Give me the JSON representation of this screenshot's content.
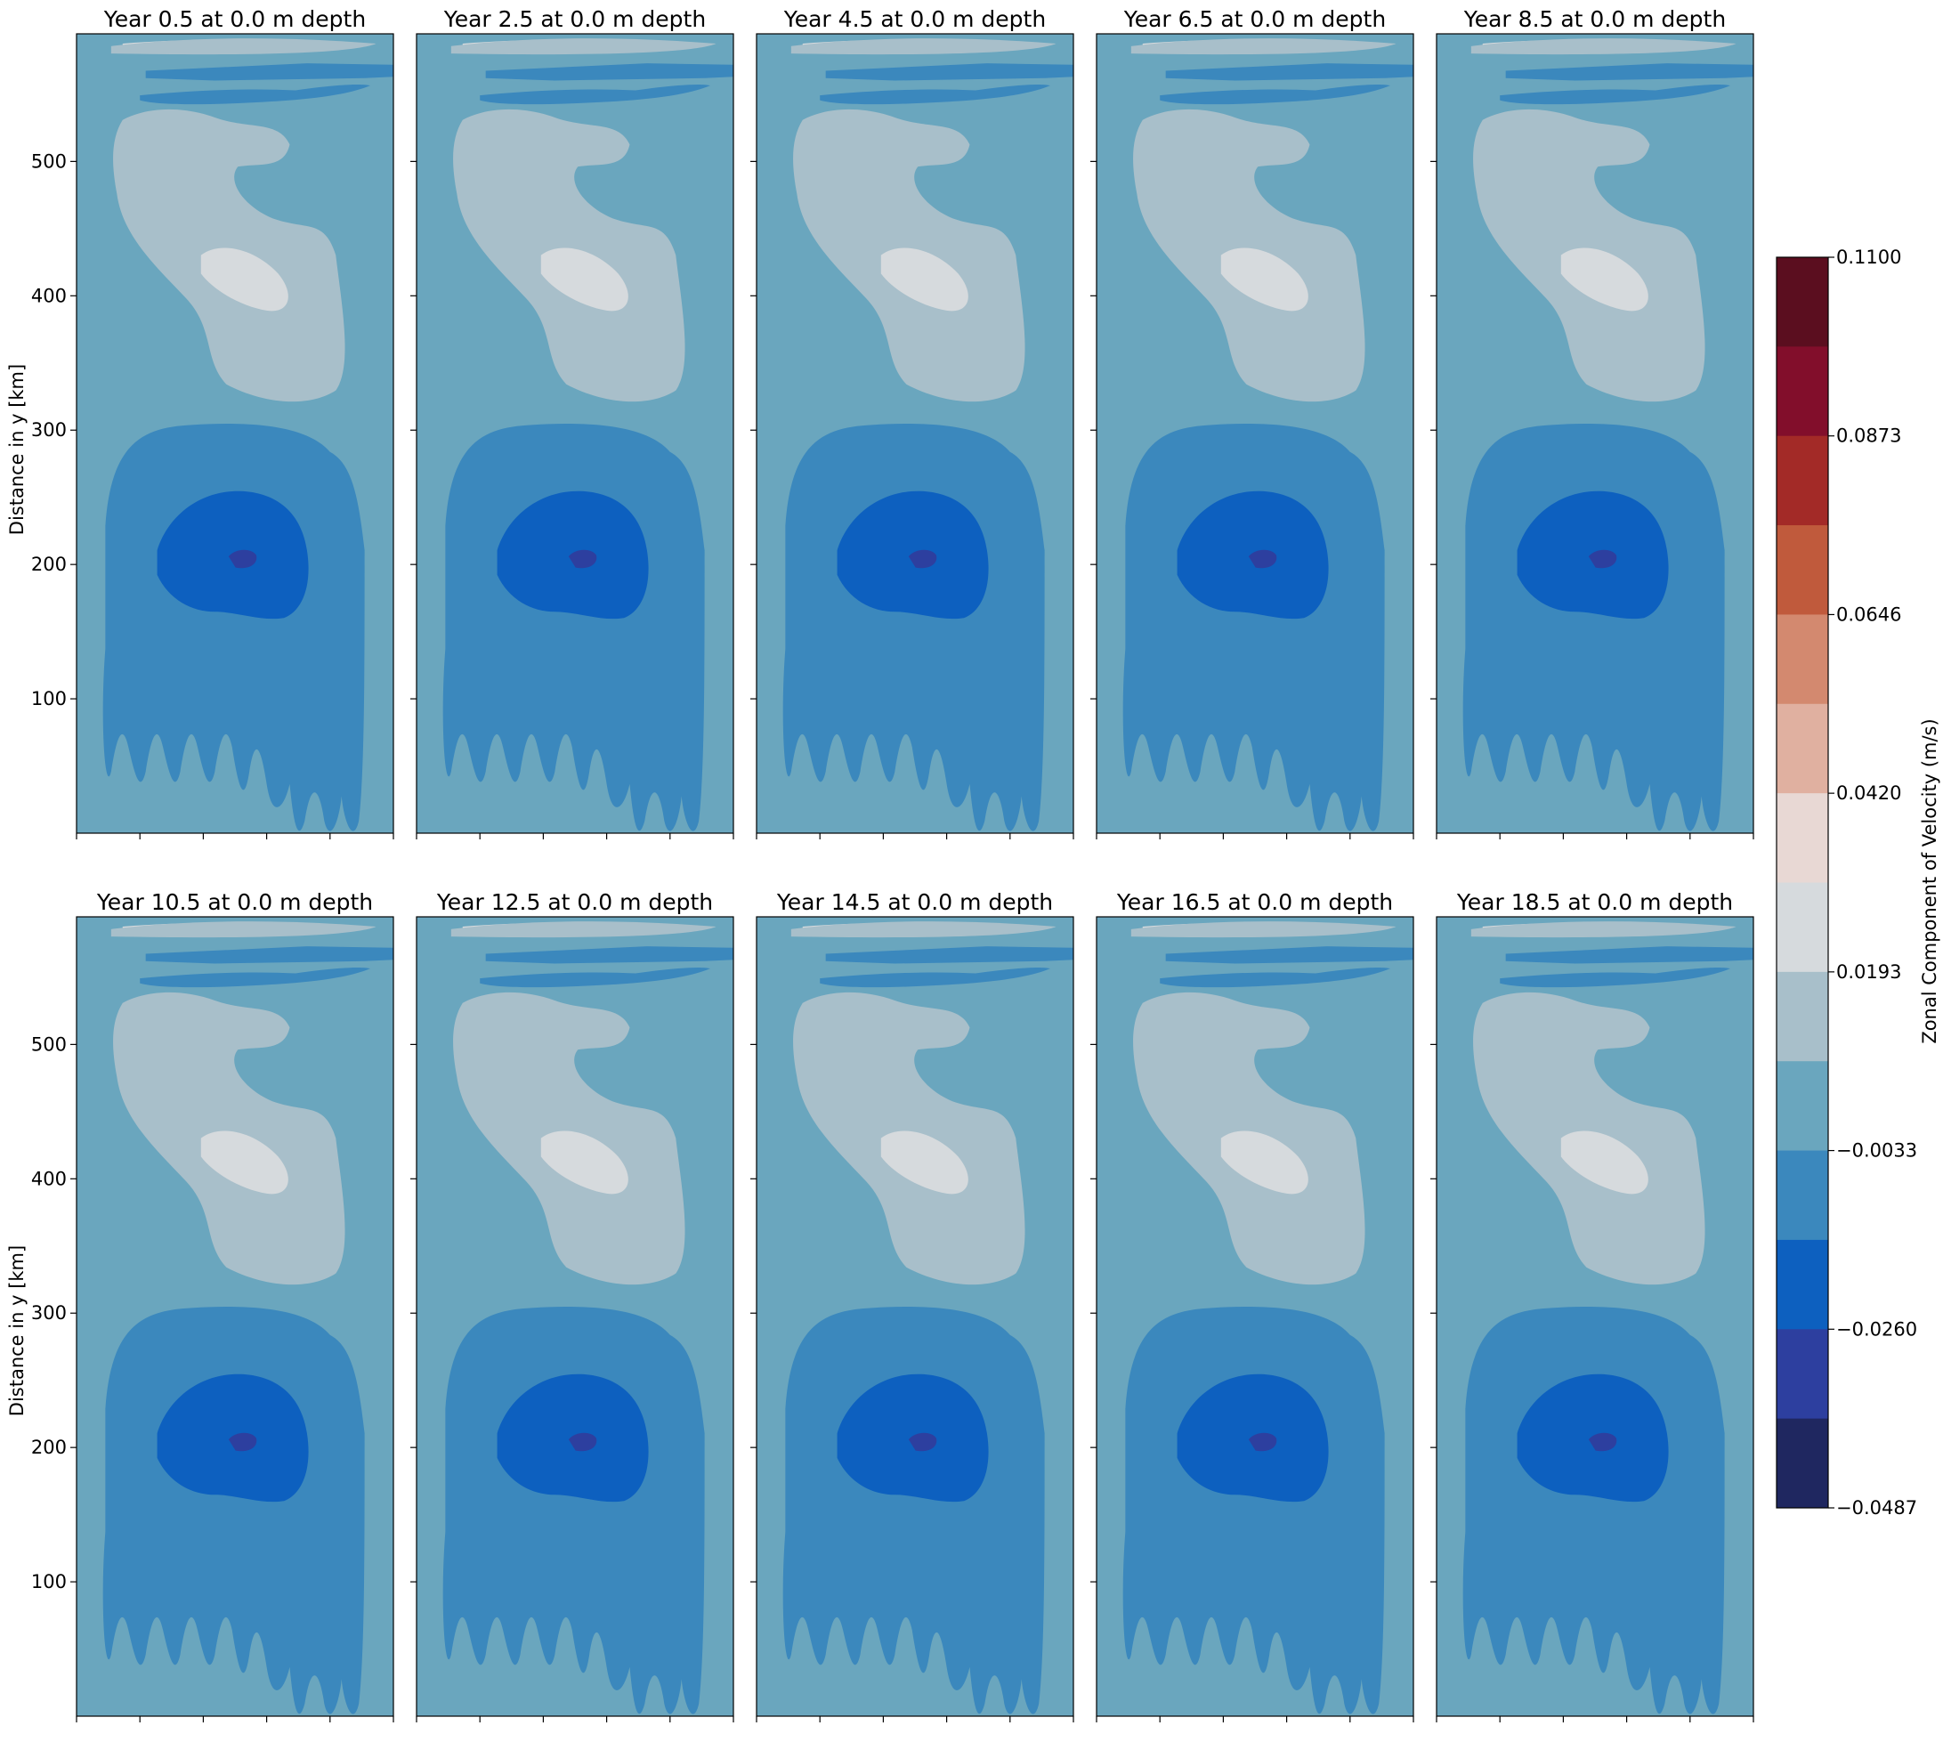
{
  "chart_data": {
    "type": "contour",
    "panel_titles": [
      "Year 0.5 at 0.0 m depth",
      "Year 2.5 at 0.0 m depth",
      "Year 4.5 at 0.0 m depth",
      "Year 6.5 at 0.0 m depth",
      "Year 8.5 at 0.0 m depth",
      "Year 10.5 at 0.0 m depth",
      "Year 12.5 at 0.0 m depth",
      "Year 14.5 at 0.0 m depth",
      "Year 16.5 at 0.0 m depth",
      "Year 18.5 at 0.0 m depth"
    ],
    "ylabel": "Distance in y [km]",
    "yticks": [
      100,
      200,
      300,
      400,
      500
    ],
    "ylim": [
      0,
      595
    ],
    "colorbar": {
      "label": "Zonal Component of Velocity (m/s)",
      "tick_labels": [
        "0.1100",
        "0.0873",
        "0.0646",
        "0.0420",
        "0.0193",
        "−0.0033",
        "−0.0260",
        "−0.0487"
      ],
      "range": [
        -0.0487,
        0.11
      ],
      "levels": 14,
      "colors": [
        "#5b0e1f",
        "#820e2b",
        "#a32a27",
        "#c05a3c",
        "#d3896f",
        "#e0b0a0",
        "#e8d8d4",
        "#d6dadd",
        "#a8bfca",
        "#6aa6be",
        "#3b88bd",
        "#0d60bf",
        "#2d3f9f",
        "#1f2760"
      ]
    }
  }
}
